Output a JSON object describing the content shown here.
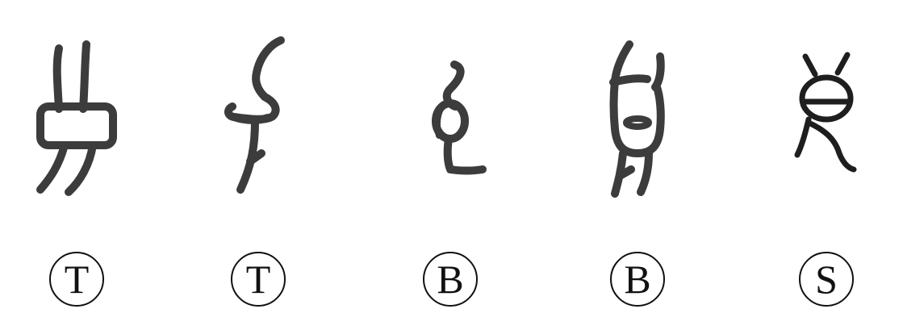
{
  "stroke_color": "#3c3c3c",
  "outline_color": "#111111",
  "glyphs": [
    {
      "icon": "oracle-bone-glyph-1-icon",
      "badge": "T"
    },
    {
      "icon": "oracle-bone-glyph-2-icon",
      "badge": "T"
    },
    {
      "icon": "oracle-bone-glyph-3-icon",
      "badge": "B"
    },
    {
      "icon": "oracle-bone-glyph-4-icon",
      "badge": "B"
    },
    {
      "icon": "oracle-bone-glyph-5-icon",
      "badge": "S"
    }
  ]
}
